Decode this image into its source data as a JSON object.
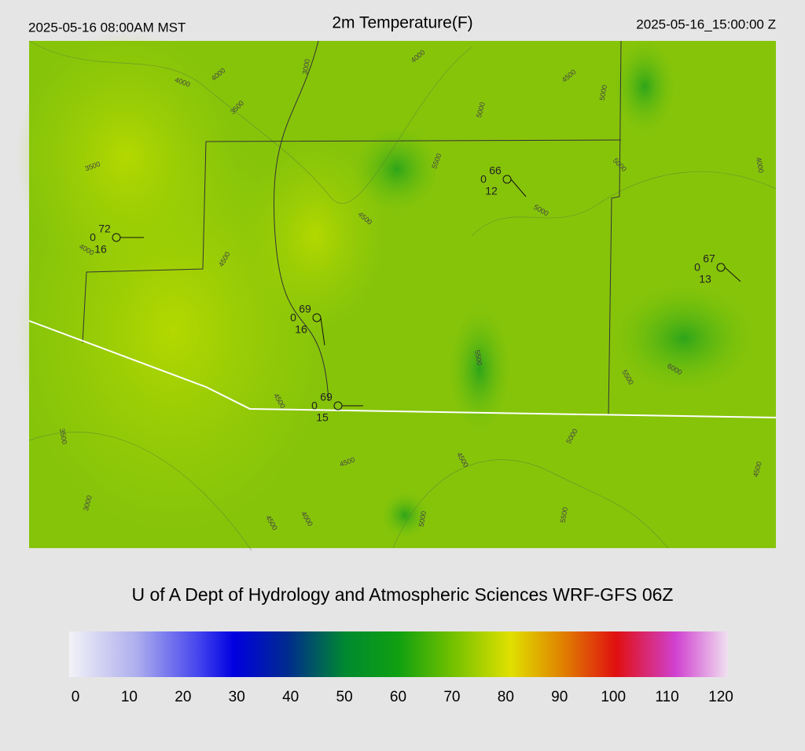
{
  "header": {
    "left": "2025-05-16 08:00AM MST",
    "title": "2m Temperature(F)",
    "right": "2025-05-16_15:00:00 Z"
  },
  "stations": [
    {
      "temp": 72,
      "left": 0,
      "bottom": 16
    },
    {
      "temp": 66,
      "left": 0,
      "bottom": 12
    },
    {
      "temp": 67,
      "left": 0,
      "bottom": 13
    },
    {
      "temp": 69,
      "left": 0,
      "bottom": 16
    },
    {
      "temp": 69,
      "left": 0,
      "bottom": 15
    }
  ],
  "contour_labels": [
    "4000",
    "4000",
    "3500",
    "3000",
    "4000",
    "5000",
    "4500",
    "5000",
    "5000",
    "4000",
    "3500",
    "5500",
    "4500",
    "5000",
    "4500",
    "4000",
    "5500",
    "5500",
    "6000",
    "4500",
    "3500",
    "4500",
    "4500",
    "5000",
    "4500",
    "3000",
    "4500",
    "4000",
    "5000",
    "5500"
  ],
  "credit": "U of A Dept of Hydrology and Atmospheric Sciences WRF-GFS 06Z",
  "colorbar": {
    "ticks": [
      0,
      10,
      20,
      30,
      40,
      50,
      60,
      70,
      80,
      90,
      100,
      110,
      120
    ]
  }
}
